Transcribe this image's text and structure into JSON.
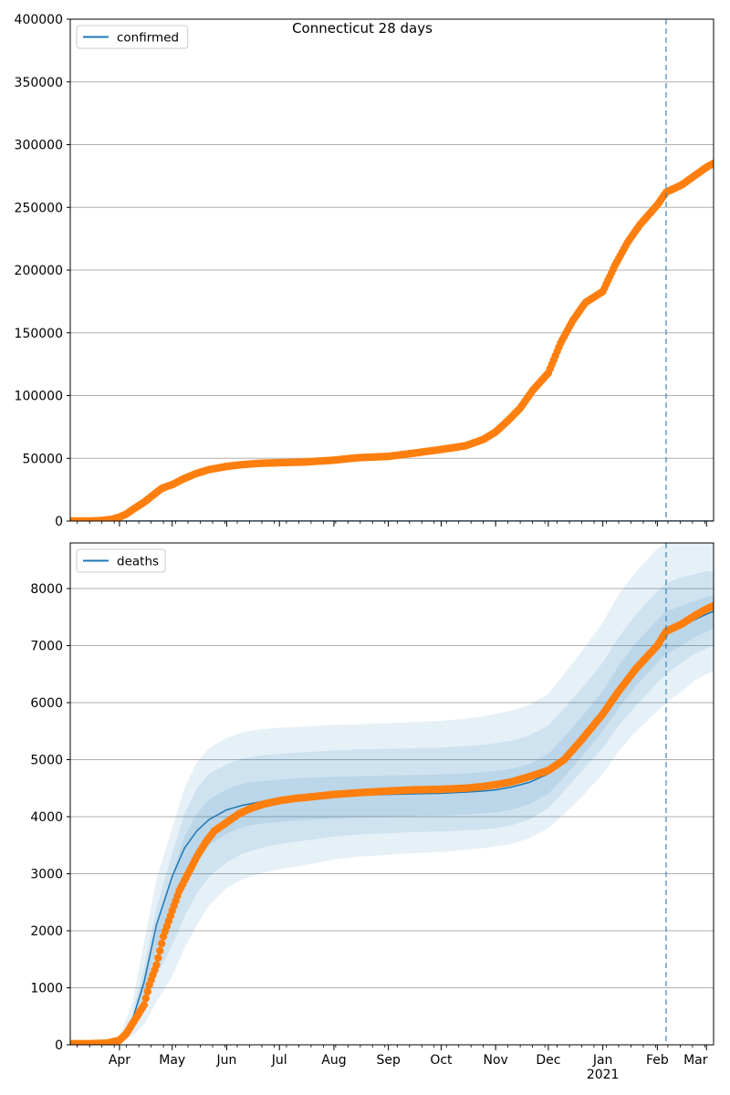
{
  "figure": {
    "title": "Connecticut 28 days"
  },
  "style": {
    "observed_color": "#ff7f0e",
    "model_color": "#1f77b4",
    "band_color": "#1f77b4",
    "grid_color": "#b0b0b0",
    "vline_color": "#1f77b4"
  },
  "chart_data": [
    {
      "type": "line",
      "panel": "top",
      "title": "Connecticut 28 days",
      "legend": [
        "confirmed"
      ],
      "legend_position": "upper-left",
      "grid": "horizontal",
      "xlim": [
        "2020-03-04",
        "2021-03-05"
      ],
      "ylim": [
        0,
        400000
      ],
      "yticks": [
        0,
        50000,
        100000,
        150000,
        200000,
        250000,
        300000,
        350000,
        400000
      ],
      "xticks": [
        {
          "date": "2020-04-01",
          "label": "Apr"
        },
        {
          "date": "2020-05-01",
          "label": "May"
        },
        {
          "date": "2020-06-01",
          "label": "Jun"
        },
        {
          "date": "2020-07-01",
          "label": "Jul"
        },
        {
          "date": "2020-08-01",
          "label": "Aug"
        },
        {
          "date": "2020-09-01",
          "label": "Sep"
        },
        {
          "date": "2020-10-01",
          "label": "Oct"
        },
        {
          "date": "2020-11-01",
          "label": "Nov"
        },
        {
          "date": "2020-12-01",
          "label": "Dec"
        },
        {
          "date": "2021-01-01",
          "label": "Jan",
          "sublabel": "2021"
        },
        {
          "date": "2021-02-01",
          "label": "Feb"
        },
        {
          "date": "2021-03-01",
          "label": "Mar"
        }
      ],
      "show_tick_labels": false,
      "forecast_start": "2021-02-06",
      "series": [
        {
          "name": "confirmed",
          "role": "model",
          "x": [
            "2020-03-04",
            "2021-03-05"
          ],
          "y": [
            0,
            0
          ]
        },
        {
          "role": "observed",
          "x": [
            "2020-03-04",
            "2020-03-15",
            "2020-03-22",
            "2020-03-28",
            "2020-04-01",
            "2020-04-05",
            "2020-04-10",
            "2020-04-15",
            "2020-04-20",
            "2020-04-25",
            "2020-05-01",
            "2020-05-08",
            "2020-05-15",
            "2020-05-22",
            "2020-06-01",
            "2020-06-10",
            "2020-06-20",
            "2020-07-01",
            "2020-07-15",
            "2020-08-01",
            "2020-08-15",
            "2020-09-01",
            "2020-09-15",
            "2020-10-01",
            "2020-10-15",
            "2020-10-25",
            "2020-11-01",
            "2020-11-08",
            "2020-11-15",
            "2020-11-22",
            "2020-12-01",
            "2020-12-08",
            "2020-12-15",
            "2020-12-22",
            "2021-01-01",
            "2021-01-08",
            "2021-01-15",
            "2021-01-22",
            "2021-02-01",
            "2021-02-06",
            "2021-02-15",
            "2021-02-22",
            "2021-03-01",
            "2021-03-05"
          ],
          "y": [
            0,
            0,
            400,
            1500,
            3100,
            5700,
            10500,
            15000,
            20500,
            26000,
            29000,
            34000,
            38000,
            41000,
            43500,
            45000,
            46000,
            46500,
            47000,
            48500,
            50500,
            51500,
            54000,
            57000,
            60000,
            65000,
            71000,
            80000,
            90000,
            104000,
            118000,
            142000,
            160000,
            174000,
            183000,
            204000,
            222000,
            236000,
            252000,
            262000,
            268000,
            275000,
            282000,
            285000
          ]
        }
      ]
    },
    {
      "type": "line",
      "panel": "bottom",
      "legend": [
        "deaths"
      ],
      "legend_position": "upper-left",
      "grid": "horizontal",
      "xlim": [
        "2020-03-04",
        "2021-03-05"
      ],
      "ylim": [
        0,
        8800
      ],
      "yticks": [
        0,
        1000,
        2000,
        3000,
        4000,
        5000,
        6000,
        7000,
        8000
      ],
      "xticks": [
        {
          "date": "2020-04-01",
          "label": "Apr"
        },
        {
          "date": "2020-05-01",
          "label": "May"
        },
        {
          "date": "2020-06-01",
          "label": "Jun"
        },
        {
          "date": "2020-07-01",
          "label": "Jul"
        },
        {
          "date": "2020-08-01",
          "label": "Aug"
        },
        {
          "date": "2020-09-01",
          "label": "Sep"
        },
        {
          "date": "2020-10-01",
          "label": "Oct"
        },
        {
          "date": "2020-11-01",
          "label": "Nov"
        },
        {
          "date": "2020-12-01",
          "label": "Dec"
        },
        {
          "date": "2021-01-01",
          "label": "Jan",
          "sublabel": "2021"
        },
        {
          "date": "2021-02-01",
          "label": "Feb"
        },
        {
          "date": "2021-03-01",
          "label": "Mar"
        }
      ],
      "show_tick_labels": true,
      "forecast_start": "2021-02-06",
      "x": [
        "2020-03-04",
        "2020-03-15",
        "2020-03-25",
        "2020-04-01",
        "2020-04-08",
        "2020-04-15",
        "2020-04-22",
        "2020-05-01",
        "2020-05-08",
        "2020-05-15",
        "2020-05-22",
        "2020-06-01",
        "2020-06-10",
        "2020-06-20",
        "2020-07-01",
        "2020-07-15",
        "2020-08-01",
        "2020-08-15",
        "2020-09-01",
        "2020-09-15",
        "2020-10-01",
        "2020-10-15",
        "2020-10-25",
        "2020-11-01",
        "2020-11-10",
        "2020-11-20",
        "2020-12-01",
        "2020-12-10",
        "2020-12-20",
        "2021-01-01",
        "2021-01-10",
        "2021-01-20",
        "2021-02-01",
        "2021-02-06",
        "2021-02-15",
        "2021-02-22",
        "2021-03-01",
        "2021-03-05"
      ],
      "bands": [
        {
          "lower": [
            0,
            0,
            15,
            50,
            150,
            350,
            750,
            1200,
            1700,
            2100,
            2450,
            2750,
            2900,
            3000,
            3080,
            3150,
            3250,
            3300,
            3330,
            3360,
            3380,
            3420,
            3450,
            3480,
            3520,
            3620,
            3800,
            4050,
            4350,
            4750,
            5150,
            5500,
            5850,
            6000,
            6200,
            6380,
            6500,
            6550
          ],
          "upper": [
            0,
            0,
            40,
            150,
            700,
            1800,
            2900,
            3800,
            4500,
            4950,
            5200,
            5380,
            5480,
            5530,
            5560,
            5580,
            5610,
            5620,
            5640,
            5660,
            5680,
            5720,
            5760,
            5800,
            5860,
            5960,
            6150,
            6500,
            6900,
            7400,
            7900,
            8300,
            8700,
            8800,
            8800,
            8800,
            8800,
            8800
          ]
        },
        {
          "lower": [
            0,
            0,
            25,
            80,
            280,
            650,
            1200,
            1750,
            2250,
            2650,
            2950,
            3200,
            3350,
            3450,
            3520,
            3580,
            3650,
            3690,
            3710,
            3730,
            3740,
            3760,
            3780,
            3800,
            3850,
            3950,
            4150,
            4450,
            4800,
            5200,
            5600,
            5950,
            6350,
            6500,
            6700,
            6850,
            6950,
            7000
          ],
          "upper": [
            0,
            0,
            30,
            110,
            500,
            1350,
            2400,
            3350,
            4050,
            4500,
            4750,
            4920,
            5020,
            5070,
            5100,
            5130,
            5160,
            5180,
            5190,
            5200,
            5210,
            5240,
            5260,
            5290,
            5330,
            5420,
            5600,
            5900,
            6250,
            6700,
            7150,
            7550,
            7950,
            8100,
            8200,
            8250,
            8300,
            8300
          ]
        },
        {
          "lower": [
            0,
            0,
            28,
            95,
            380,
            950,
            1700,
            2400,
            2900,
            3250,
            3500,
            3700,
            3820,
            3880,
            3910,
            3940,
            3970,
            3990,
            4000,
            4010,
            4020,
            4040,
            4060,
            4080,
            4120,
            4220,
            4400,
            4700,
            5050,
            5500,
            5900,
            6300,
            6700,
            6850,
            7000,
            7150,
            7250,
            7300
          ],
          "upper": [
            0,
            0,
            30,
            105,
            420,
            1200,
            2150,
            3000,
            3650,
            4050,
            4300,
            4480,
            4580,
            4620,
            4650,
            4680,
            4700,
            4710,
            4720,
            4730,
            4740,
            4760,
            4780,
            4800,
            4840,
            4920,
            5100,
            5400,
            5750,
            6200,
            6650,
            7050,
            7450,
            7600,
            7700,
            7780,
            7850,
            7880
          ]
        }
      ],
      "series": [
        {
          "name": "deaths",
          "role": "model",
          "y": [
            0,
            0,
            30,
            100,
            400,
            1100,
            2100,
            2950,
            3450,
            3750,
            3950,
            4120,
            4200,
            4260,
            4310,
            4340,
            4360,
            4375,
            4390,
            4400,
            4410,
            4430,
            4450,
            4470,
            4520,
            4600,
            4750,
            5000,
            5350,
            5800,
            6250,
            6650,
            7050,
            7200,
            7350,
            7450,
            7550,
            7600
          ]
        },
        {
          "role": "observed",
          "x": [
            "2020-03-04",
            "2020-03-15",
            "2020-03-25",
            "2020-04-01",
            "2020-04-05",
            "2020-04-08",
            "2020-04-12",
            "2020-04-15",
            "2020-04-18",
            "2020-04-22",
            "2020-04-26",
            "2020-05-01",
            "2020-05-05",
            "2020-05-10",
            "2020-05-15",
            "2020-05-20",
            "2020-05-25",
            "2020-06-01",
            "2020-06-08",
            "2020-06-15",
            "2020-06-22",
            "2020-07-01",
            "2020-07-10",
            "2020-07-20",
            "2020-08-01",
            "2020-08-15",
            "2020-09-01",
            "2020-09-15",
            "2020-10-01",
            "2020-10-15",
            "2020-10-25",
            "2020-11-01",
            "2020-11-10",
            "2020-11-20",
            "2020-12-01",
            "2020-12-10",
            "2020-12-20",
            "2021-01-01",
            "2021-01-10",
            "2021-01-20",
            "2021-02-01",
            "2021-02-06",
            "2021-02-15",
            "2021-02-22",
            "2021-03-01",
            "2021-03-05"
          ],
          "y": [
            20,
            20,
            30,
            80,
            200,
            350,
            550,
            700,
            1050,
            1400,
            1900,
            2350,
            2700,
            3000,
            3300,
            3550,
            3750,
            3900,
            4050,
            4150,
            4220,
            4280,
            4320,
            4350,
            4390,
            4420,
            4450,
            4470,
            4480,
            4500,
            4530,
            4560,
            4610,
            4700,
            4810,
            5000,
            5350,
            5800,
            6200,
            6600,
            7000,
            7250,
            7380,
            7520,
            7640,
            7700
          ]
        }
      ]
    }
  ]
}
